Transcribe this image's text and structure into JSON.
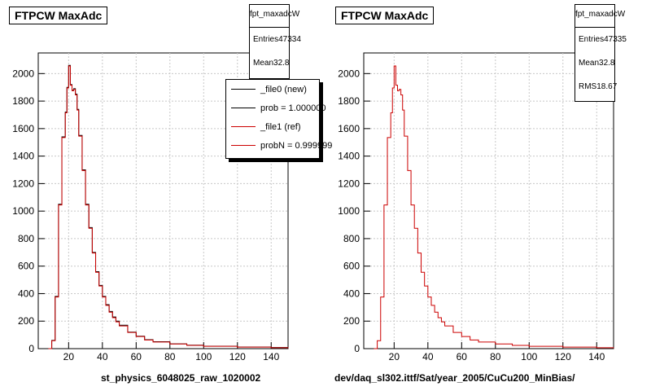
{
  "colors": {
    "new": "#000000",
    "ref": "#cc0000",
    "grid": "#c8c8c8"
  },
  "left_panel": {
    "title": "FTPCW MaxAdc",
    "stats": {
      "name": "fpt_maxadcW",
      "entries_label": "Entries",
      "entries_value": "47334",
      "mean_label": "Mean",
      "mean_value": "32.8"
    },
    "legend": [
      {
        "label": "_file0 (new)",
        "color": "#000000"
      },
      {
        "label": "prob = 1.000000",
        "color": "#000000"
      },
      {
        "label": "_file1 (ref)",
        "color": "#cc0000"
      },
      {
        "label": "probN = 0.999999",
        "color": "#cc0000"
      }
    ],
    "caption": "st_physics_6048025_raw_1020002"
  },
  "right_panel": {
    "title": "FTPCW MaxAdc",
    "stats": {
      "name": "fpt_maxadcW",
      "entries_label": "Entries",
      "entries_value": "47335",
      "mean_label": "Mean",
      "mean_value": "32.8",
      "rms_label": "RMS",
      "rms_value": "18.67"
    },
    "caption": "dev/daq_sl302.ittf/Sat/year_2005/CuCu200_MinBias/"
  },
  "chart_data": [
    {
      "type": "line",
      "title": "FTPCW MaxAdc",
      "xlim": [
        2,
        150
      ],
      "ylim": [
        0,
        2150
      ],
      "xticks": [
        20,
        40,
        60,
        80,
        100,
        120,
        140
      ],
      "yticks": [
        0,
        200,
        400,
        600,
        800,
        1000,
        1200,
        1400,
        1600,
        1800,
        2000
      ],
      "grid": true,
      "legend_placement": "top-right",
      "x": [
        8,
        10,
        12,
        14,
        16,
        18,
        19,
        20,
        21,
        22,
        23,
        24,
        25,
        26,
        28,
        30,
        32,
        34,
        36,
        38,
        40,
        42,
        44,
        46,
        48,
        50,
        55,
        60,
        65,
        70,
        80,
        90,
        100,
        120,
        140,
        150
      ],
      "series": [
        {
          "name": "_file0 (new)",
          "values": [
            0,
            60,
            380,
            1050,
            1540,
            1720,
            1900,
            2060,
            1920,
            1880,
            1890,
            1850,
            1740,
            1550,
            1300,
            1050,
            880,
            700,
            560,
            460,
            380,
            320,
            270,
            230,
            200,
            170,
            120,
            90,
            65,
            50,
            35,
            25,
            18,
            12,
            8,
            5
          ]
        },
        {
          "name": "_file1 (ref)",
          "values": [
            0,
            58,
            375,
            1045,
            1535,
            1715,
            1895,
            2055,
            1915,
            1875,
            1885,
            1845,
            1735,
            1545,
            1295,
            1045,
            875,
            695,
            555,
            455,
            375,
            315,
            265,
            225,
            195,
            165,
            118,
            88,
            63,
            48,
            34,
            24,
            17,
            11,
            7,
            4
          ]
        }
      ]
    },
    {
      "type": "line",
      "title": "FTPCW MaxAdc",
      "xlim": [
        2,
        150
      ],
      "ylim": [
        0,
        2150
      ],
      "xticks": [
        20,
        40,
        60,
        80,
        100,
        120,
        140
      ],
      "yticks": [
        0,
        200,
        400,
        600,
        800,
        1000,
        1200,
        1400,
        1600,
        1800,
        2000
      ],
      "grid": true,
      "x": [
        8,
        10,
        12,
        14,
        16,
        18,
        19,
        20,
        21,
        22,
        23,
        24,
        25,
        26,
        28,
        30,
        32,
        34,
        36,
        38,
        40,
        42,
        44,
        46,
        48,
        50,
        55,
        60,
        65,
        70,
        80,
        90,
        100,
        120,
        140,
        150
      ],
      "series": [
        {
          "name": "",
          "values": [
            0,
            58,
            375,
            1045,
            1535,
            1715,
            1895,
            2055,
            1915,
            1875,
            1885,
            1845,
            1735,
            1545,
            1295,
            1045,
            875,
            695,
            555,
            455,
            375,
            315,
            265,
            225,
            195,
            165,
            118,
            88,
            63,
            48,
            34,
            24,
            17,
            11,
            7,
            4
          ]
        }
      ]
    }
  ]
}
